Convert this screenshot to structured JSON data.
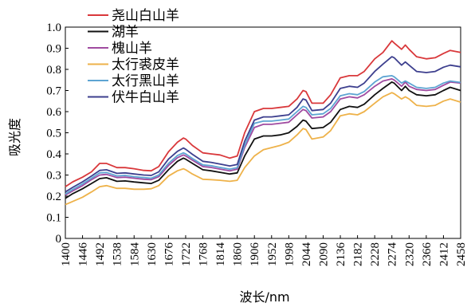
{
  "chart_data": {
    "type": "line",
    "xlabel": "波长/nm",
    "ylabel": "吸光度",
    "xlim": [
      1400,
      2458
    ],
    "ylim": [
      0,
      1.0
    ],
    "x_ticks": [
      "1400",
      "1446",
      "1492",
      "1538",
      "1584",
      "1630",
      "1676",
      "1722",
      "1768",
      "1814",
      "1860",
      "1906",
      "1952",
      "1998",
      "2044",
      "2090",
      "2136",
      "2182",
      "2228",
      "2274",
      "2320",
      "2366",
      "2412",
      "2458"
    ],
    "y_ticks": [
      "0",
      "0.1",
      "0.2",
      "0.3",
      "0.4",
      "0.5",
      "0.6",
      "0.7",
      "0.8",
      "0.9",
      "1.0"
    ],
    "legend_position": "top-left",
    "x": [
      1400,
      1420,
      1446,
      1470,
      1492,
      1510,
      1538,
      1560,
      1584,
      1610,
      1630,
      1650,
      1676,
      1700,
      1716,
      1722,
      1740,
      1768,
      1790,
      1814,
      1840,
      1860,
      1880,
      1906,
      1930,
      1952,
      1975,
      1998,
      2020,
      2036,
      2044,
      2060,
      2090,
      2110,
      2136,
      2160,
      2182,
      2200,
      2228,
      2250,
      2274,
      2280,
      2300,
      2310,
      2320,
      2340,
      2366,
      2390,
      2412,
      2430,
      2458
    ],
    "series": [
      {
        "name": "尧山白山羊",
        "color": "#d9383b",
        "values": [
          0.245,
          0.268,
          0.29,
          0.315,
          0.355,
          0.355,
          0.335,
          0.335,
          0.33,
          0.322,
          0.32,
          0.34,
          0.41,
          0.455,
          0.475,
          0.47,
          0.44,
          0.405,
          0.4,
          0.395,
          0.38,
          0.39,
          0.5,
          0.6,
          0.615,
          0.615,
          0.62,
          0.625,
          0.66,
          0.7,
          0.695,
          0.64,
          0.64,
          0.68,
          0.76,
          0.77,
          0.77,
          0.79,
          0.85,
          0.88,
          0.935,
          0.925,
          0.895,
          0.915,
          0.895,
          0.86,
          0.85,
          0.855,
          0.875,
          0.89,
          0.88
        ]
      },
      {
        "name": "湖羊",
        "color": "#111111",
        "values": [
          0.19,
          0.212,
          0.235,
          0.26,
          0.283,
          0.287,
          0.27,
          0.272,
          0.267,
          0.263,
          0.26,
          0.275,
          0.325,
          0.365,
          0.38,
          0.375,
          0.355,
          0.325,
          0.32,
          0.313,
          0.305,
          0.31,
          0.39,
          0.47,
          0.485,
          0.485,
          0.49,
          0.5,
          0.53,
          0.56,
          0.555,
          0.52,
          0.525,
          0.55,
          0.61,
          0.625,
          0.62,
          0.635,
          0.68,
          0.71,
          0.74,
          0.735,
          0.7,
          0.72,
          0.7,
          0.68,
          0.675,
          0.68,
          0.7,
          0.715,
          0.7
        ]
      },
      {
        "name": "槐山羊",
        "color": "#a04ba0",
        "values": [
          0.205,
          0.225,
          0.25,
          0.278,
          0.3,
          0.303,
          0.288,
          0.29,
          0.285,
          0.28,
          0.278,
          0.292,
          0.345,
          0.382,
          0.395,
          0.39,
          0.37,
          0.34,
          0.336,
          0.328,
          0.32,
          0.328,
          0.43,
          0.525,
          0.54,
          0.54,
          0.545,
          0.55,
          0.585,
          0.61,
          0.605,
          0.57,
          0.575,
          0.6,
          0.66,
          0.67,
          0.665,
          0.68,
          0.72,
          0.745,
          0.755,
          0.75,
          0.72,
          0.74,
          0.72,
          0.705,
          0.7,
          0.705,
          0.725,
          0.74,
          0.735
        ]
      },
      {
        "name": "太行裘皮羊",
        "color": "#eeb24a",
        "values": [
          0.16,
          0.175,
          0.195,
          0.22,
          0.245,
          0.25,
          0.237,
          0.237,
          0.233,
          0.233,
          0.235,
          0.25,
          0.295,
          0.32,
          0.33,
          0.325,
          0.305,
          0.28,
          0.278,
          0.275,
          0.27,
          0.275,
          0.335,
          0.39,
          0.42,
          0.43,
          0.44,
          0.455,
          0.49,
          0.52,
          0.515,
          0.47,
          0.48,
          0.51,
          0.58,
          0.59,
          0.585,
          0.6,
          0.64,
          0.67,
          0.69,
          0.685,
          0.66,
          0.67,
          0.66,
          0.63,
          0.625,
          0.63,
          0.65,
          0.66,
          0.645
        ]
      },
      {
        "name": "太行黑山羊",
        "color": "#5da4d2",
        "values": [
          0.21,
          0.232,
          0.258,
          0.285,
          0.31,
          0.312,
          0.296,
          0.298,
          0.292,
          0.288,
          0.285,
          0.3,
          0.355,
          0.392,
          0.405,
          0.4,
          0.378,
          0.348,
          0.344,
          0.336,
          0.328,
          0.335,
          0.44,
          0.545,
          0.555,
          0.555,
          0.56,
          0.565,
          0.6,
          0.625,
          0.62,
          0.585,
          0.59,
          0.615,
          0.675,
          0.685,
          0.68,
          0.695,
          0.74,
          0.765,
          0.77,
          0.765,
          0.735,
          0.745,
          0.735,
          0.715,
          0.71,
          0.715,
          0.735,
          0.745,
          0.738
        ]
      },
      {
        "name": "伏牛白山羊",
        "color": "#3d3f8e",
        "values": [
          0.22,
          0.242,
          0.268,
          0.295,
          0.322,
          0.325,
          0.308,
          0.31,
          0.305,
          0.3,
          0.298,
          0.315,
          0.375,
          0.412,
          0.428,
          0.422,
          0.398,
          0.365,
          0.36,
          0.352,
          0.343,
          0.35,
          0.46,
          0.56,
          0.575,
          0.575,
          0.58,
          0.585,
          0.62,
          0.66,
          0.655,
          0.605,
          0.61,
          0.64,
          0.71,
          0.72,
          0.715,
          0.735,
          0.79,
          0.825,
          0.86,
          0.855,
          0.82,
          0.835,
          0.82,
          0.79,
          0.785,
          0.79,
          0.81,
          0.82,
          0.812
        ]
      }
    ]
  }
}
